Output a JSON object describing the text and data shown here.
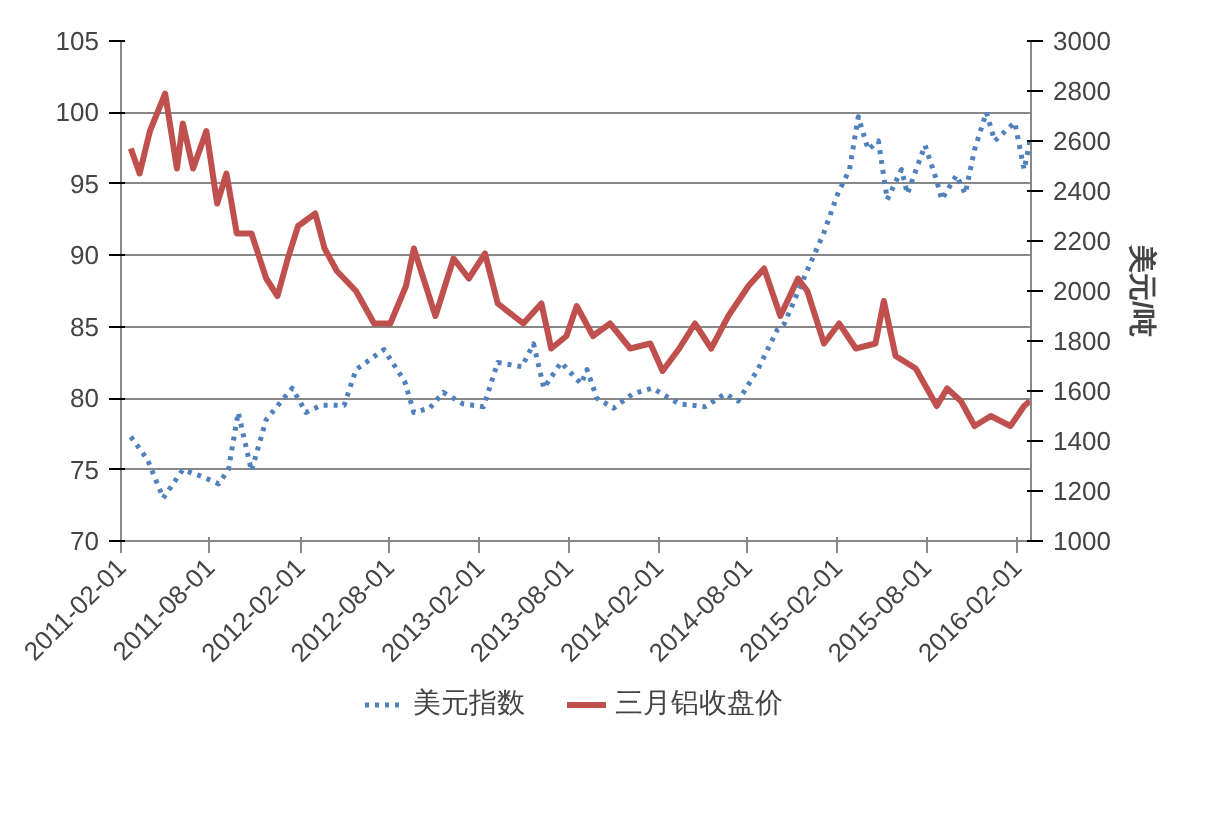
{
  "chart_data": {
    "type": "line",
    "y2label": "美元/吨",
    "xlim": [
      "2011-02-01",
      "2016-03-01"
    ],
    "xticks": [
      "2011-02-01",
      "2011-08-01",
      "2012-02-01",
      "2012-08-01",
      "2013-02-01",
      "2013-08-01",
      "2014-02-01",
      "2014-08-01",
      "2015-02-01",
      "2015-08-01",
      "2016-02-01"
    ],
    "ylim": [
      70,
      105
    ],
    "yticks": [
      70,
      75,
      80,
      85,
      90,
      95,
      100,
      105
    ],
    "y2lim": [
      1000,
      3000
    ],
    "y2ticks": [
      1000,
      1200,
      1400,
      1600,
      1800,
      2000,
      2200,
      2400,
      2600,
      2800,
      3000
    ],
    "grid": "y",
    "legend": "bottom",
    "marker": "none",
    "series": [
      {
        "name": "美元指数",
        "color": "#4f81bd",
        "line_style": "dotted",
        "x": [
          "2011-02-21",
          "2011-03-27",
          "2011-04-28",
          "2011-06-07",
          "2011-07-17",
          "2011-08-19",
          "2011-09-08",
          "2011-09-28",
          "2011-10-25",
          "2011-11-24",
          "2012-01-16",
          "2012-02-13",
          "2012-03-15",
          "2012-05-01",
          "2012-05-25",
          "2012-07-21",
          "2012-09-01",
          "2012-09-20",
          "2012-10-22",
          "2012-11-19",
          "2012-12-29",
          "2013-02-09",
          "2013-03-10",
          "2013-04-28",
          "2013-05-22",
          "2013-06-12",
          "2013-07-17",
          "2013-08-27",
          "2013-09-08",
          "2013-09-28",
          "2013-11-01",
          "2013-12-10",
          "2014-01-19",
          "2014-03-15",
          "2014-05-07",
          "2014-06-16",
          "2014-07-13",
          "2014-08-22",
          "2014-10-01",
          "2014-10-15",
          "2014-11-24",
          "2015-01-04",
          "2015-02-01",
          "2015-02-25",
          "2015-03-15",
          "2015-04-04",
          "2015-04-25",
          "2015-05-13",
          "2015-06-11",
          "2015-06-23",
          "2015-07-29",
          "2015-08-22",
          "2015-09-01",
          "2015-10-01",
          "2015-10-19",
          "2015-11-07",
          "2015-12-01",
          "2015-12-18",
          "2016-01-28",
          "2016-02-16",
          "2016-02-28"
        ],
        "values": [
          77.3,
          75.7,
          73.0,
          75.0,
          74.5,
          74.0,
          75.0,
          79.0,
          74.9,
          78.5,
          80.7,
          79.0,
          79.5,
          79.5,
          82.0,
          83.4,
          81.2,
          79.0,
          79.3,
          80.4,
          79.6,
          79.4,
          82.5,
          82.2,
          83.8,
          80.7,
          82.5,
          81.0,
          82.0,
          80.0,
          79.3,
          80.3,
          80.7,
          79.6,
          79.4,
          80.3,
          79.8,
          82.0,
          84.8,
          85.2,
          88.4,
          91.6,
          94.3,
          96.0,
          99.7,
          97.4,
          98.0,
          93.9,
          96.0,
          94.3,
          97.7,
          95.2,
          93.9,
          95.6,
          94.3,
          97.4,
          100.0,
          98.0,
          99.3,
          96.0,
          98.0
        ]
      },
      {
        "name": "三月铝收盘价",
        "color": "#c0504d",
        "line_style": "solid",
        "axis": "y2",
        "x": [
          "2011-02-21",
          "2011-03-11",
          "2011-04-01",
          "2011-05-02",
          "2011-05-26",
          "2011-06-07",
          "2011-06-28",
          "2011-07-25",
          "2011-08-16",
          "2011-09-04",
          "2011-09-25",
          "2011-10-25",
          "2011-11-24",
          "2011-12-17",
          "2012-01-07",
          "2012-01-28",
          "2012-03-03",
          "2012-03-22",
          "2012-04-16",
          "2012-05-25",
          "2012-07-01",
          "2012-08-03",
          "2012-09-04",
          "2012-09-20",
          "2012-11-03",
          "2012-12-10",
          "2013-01-10",
          "2013-02-12",
          "2013-03-10",
          "2013-05-01",
          "2013-06-07",
          "2013-06-27",
          "2013-07-28",
          "2013-08-18",
          "2013-09-20",
          "2013-10-25",
          "2013-12-05",
          "2014-01-15",
          "2014-02-09",
          "2014-03-15",
          "2014-04-16",
          "2014-05-19",
          "2014-06-23",
          "2014-08-03",
          "2014-09-04",
          "2014-10-07",
          "2014-11-12",
          "2014-12-01",
          "2015-01-04",
          "2015-02-04",
          "2015-03-10",
          "2015-04-19",
          "2015-05-06",
          "2015-05-30",
          "2015-07-10",
          "2015-08-22",
          "2015-09-12",
          "2015-10-10",
          "2015-11-07",
          "2015-12-10",
          "2016-01-19",
          "2016-02-16",
          "2016-02-28"
        ],
        "values": [
          2570,
          2470,
          2640,
          2790,
          2490,
          2670,
          2490,
          2640,
          2350,
          2470,
          2230,
          2230,
          2050,
          1980,
          2130,
          2260,
          2310,
          2170,
          2080,
          2000,
          1870,
          1870,
          2020,
          2170,
          1900,
          2130,
          2050,
          2150,
          1950,
          1870,
          1950,
          1770,
          1820,
          1940,
          1820,
          1870,
          1770,
          1790,
          1680,
          1770,
          1870,
          1770,
          1900,
          2020,
          2090,
          1900,
          2050,
          2000,
          1790,
          1870,
          1770,
          1790,
          1960,
          1740,
          1690,
          1540,
          1610,
          1560,
          1460,
          1500,
          1460,
          1540,
          1560
        ]
      }
    ]
  }
}
